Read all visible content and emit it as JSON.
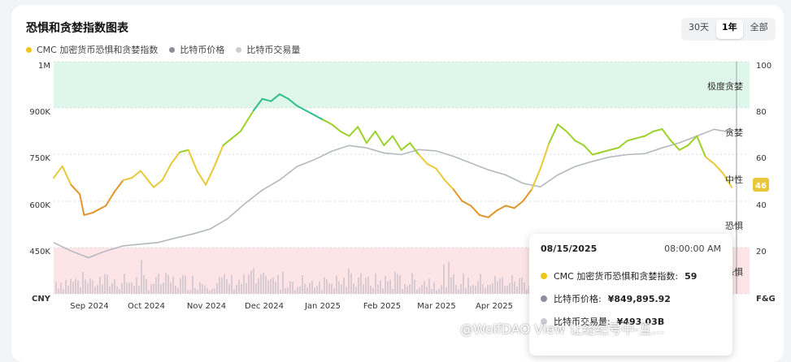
{
  "title": "恐惧和贪婪指数图表",
  "legend": [
    {
      "label": "CMC 加密货币恐惧和贪婪指数",
      "color": "#f0c419"
    },
    {
      "label": "比特币价格",
      "color": "#8a8f99"
    },
    {
      "label": "比特币交易量",
      "color": "#c9ccd1"
    }
  ],
  "range_buttons": [
    {
      "label": "30天",
      "active": false
    },
    {
      "label": "1年",
      "active": true
    },
    {
      "label": "全部",
      "active": false
    }
  ],
  "zones": {
    "extreme_greed": "极度贪婪",
    "greed": "贪婪",
    "neutral": "中性",
    "fear": "恐惧",
    "extreme_fear": "极度恐惧"
  },
  "current_value": "46",
  "tooltip": {
    "date": "08/15/2025",
    "time": "08:00:00 AM",
    "fg_label": "CMC 加密货币恐惧和贪婪指数:",
    "fg_value": "59",
    "price_label": "比特币价格:",
    "price_value": "¥849,895.92",
    "volume_label": "比特币交易量:",
    "volume_value": "¥493.03B"
  },
  "watermark": "@WolfDAO View 让经纪号中-互...",
  "chart_data": {
    "type": "line",
    "left_axis": {
      "ticks": [
        "1M",
        "900K",
        "750K",
        "600K",
        "450K"
      ],
      "unit": "CNY",
      "range": [
        450000,
        1000000
      ]
    },
    "right_axis": {
      "ticks": [
        "100",
        "80",
        "60",
        "40",
        "20"
      ],
      "unit": "F&G",
      "range": [
        20,
        100
      ]
    },
    "x_ticks": [
      "Sep 2024",
      "Oct 2024",
      "Nov 2024",
      "Dec 2024",
      "Jan 2025",
      "Feb 2025",
      "Mar 2025",
      "Apr 2025"
    ],
    "series": [
      {
        "name": "CMC 加密货币恐惧和贪婪指数",
        "axis": "right",
        "points": [
          [
            0,
            50
          ],
          [
            2,
            55
          ],
          [
            4,
            47
          ],
          [
            6,
            43
          ],
          [
            7,
            34
          ],
          [
            9,
            35
          ],
          [
            12,
            38
          ],
          [
            14,
            44
          ],
          [
            16,
            49
          ],
          [
            18,
            50
          ],
          [
            20,
            53
          ],
          [
            23,
            46
          ],
          [
            25,
            49
          ],
          [
            27,
            56
          ],
          [
            29,
            61
          ],
          [
            31,
            62
          ],
          [
            33,
            53
          ],
          [
            35,
            47
          ],
          [
            37,
            55
          ],
          [
            39,
            64
          ],
          [
            41,
            67
          ],
          [
            43,
            70
          ],
          [
            46,
            79
          ],
          [
            48,
            84
          ],
          [
            50,
            83
          ],
          [
            52,
            86
          ],
          [
            54,
            84
          ],
          [
            56,
            81
          ],
          [
            58,
            79
          ],
          [
            60,
            77
          ],
          [
            62,
            75
          ],
          [
            64,
            73
          ],
          [
            66,
            70
          ],
          [
            68,
            68
          ],
          [
            70,
            72
          ],
          [
            72,
            65
          ],
          [
            74,
            70
          ],
          [
            76,
            64
          ],
          [
            78,
            68
          ],
          [
            80,
            62
          ],
          [
            82,
            65
          ],
          [
            84,
            60
          ],
          [
            86,
            56
          ],
          [
            88,
            54
          ],
          [
            90,
            49
          ],
          [
            92,
            45
          ],
          [
            94,
            40
          ],
          [
            96,
            38
          ],
          [
            98,
            34
          ],
          [
            100,
            33
          ],
          [
            102,
            36
          ],
          [
            104,
            38
          ],
          [
            106,
            37
          ],
          [
            108,
            40
          ],
          [
            110,
            45
          ],
          [
            112,
            54
          ],
          [
            114,
            65
          ],
          [
            116,
            73
          ],
          [
            118,
            70
          ],
          [
            120,
            66
          ],
          [
            122,
            64
          ],
          [
            124,
            60
          ],
          [
            126,
            61
          ],
          [
            128,
            62
          ],
          [
            130,
            63
          ],
          [
            132,
            66
          ],
          [
            134,
            67
          ],
          [
            136,
            68
          ],
          [
            138,
            70
          ],
          [
            140,
            71
          ],
          [
            142,
            66
          ],
          [
            144,
            62
          ],
          [
            146,
            64
          ],
          [
            148,
            68
          ],
          [
            150,
            59
          ],
          [
            152,
            56
          ],
          [
            154,
            52
          ],
          [
            156,
            46
          ]
        ],
        "x_domain": [
          0,
          156
        ]
      },
      {
        "name": "比特币价格",
        "axis": "left",
        "points": [
          [
            0,
            465000
          ],
          [
            4,
            440000
          ],
          [
            8,
            420000
          ],
          [
            12,
            440000
          ],
          [
            16,
            455000
          ],
          [
            20,
            460000
          ],
          [
            24,
            465000
          ],
          [
            28,
            478000
          ],
          [
            32,
            490000
          ],
          [
            36,
            505000
          ],
          [
            40,
            535000
          ],
          [
            44,
            580000
          ],
          [
            48,
            620000
          ],
          [
            52,
            650000
          ],
          [
            56,
            690000
          ],
          [
            60,
            710000
          ],
          [
            64,
            735000
          ],
          [
            68,
            752000
          ],
          [
            72,
            745000
          ],
          [
            76,
            730000
          ],
          [
            80,
            725000
          ],
          [
            84,
            740000
          ],
          [
            88,
            736000
          ],
          [
            92,
            720000
          ],
          [
            96,
            700000
          ],
          [
            100,
            680000
          ],
          [
            104,
            665000
          ],
          [
            108,
            640000
          ],
          [
            112,
            630000
          ],
          [
            116,
            665000
          ],
          [
            120,
            690000
          ],
          [
            124,
            705000
          ],
          [
            128,
            718000
          ],
          [
            132,
            725000
          ],
          [
            136,
            728000
          ],
          [
            140,
            745000
          ],
          [
            144,
            760000
          ],
          [
            148,
            780000
          ],
          [
            152,
            800000
          ],
          [
            156,
            790000
          ]
        ],
        "x_domain": [
          0,
          156
        ]
      },
      {
        "name": "比特币交易量",
        "axis": "left",
        "note": "volume bars (relative)"
      }
    ]
  }
}
